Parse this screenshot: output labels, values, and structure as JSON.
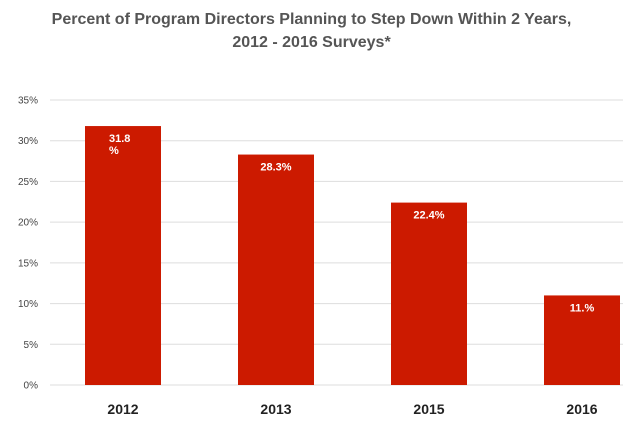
{
  "chart_data": {
    "type": "bar",
    "title_line1": "Percent of Program Directors Planning to Step Down Within 2 Years,",
    "title_line2": "2012 - 2016 Surveys*",
    "categories": [
      "2012",
      "2013",
      "2015",
      "2016"
    ],
    "values": [
      31.8,
      28.3,
      22.4,
      11.0
    ],
    "data_labels": [
      "31.8\n%",
      "28.3%",
      "22.4%",
      "11.%"
    ],
    "yticks": [
      "0%",
      "5%",
      "10%",
      "15%",
      "20%",
      "25%",
      "30%",
      "35%"
    ],
    "ylim": [
      0,
      35
    ],
    "grid": true,
    "bar_color": "#cc1a00",
    "grid_color": "#dddddd",
    "xlabel": "",
    "ylabel": ""
  }
}
